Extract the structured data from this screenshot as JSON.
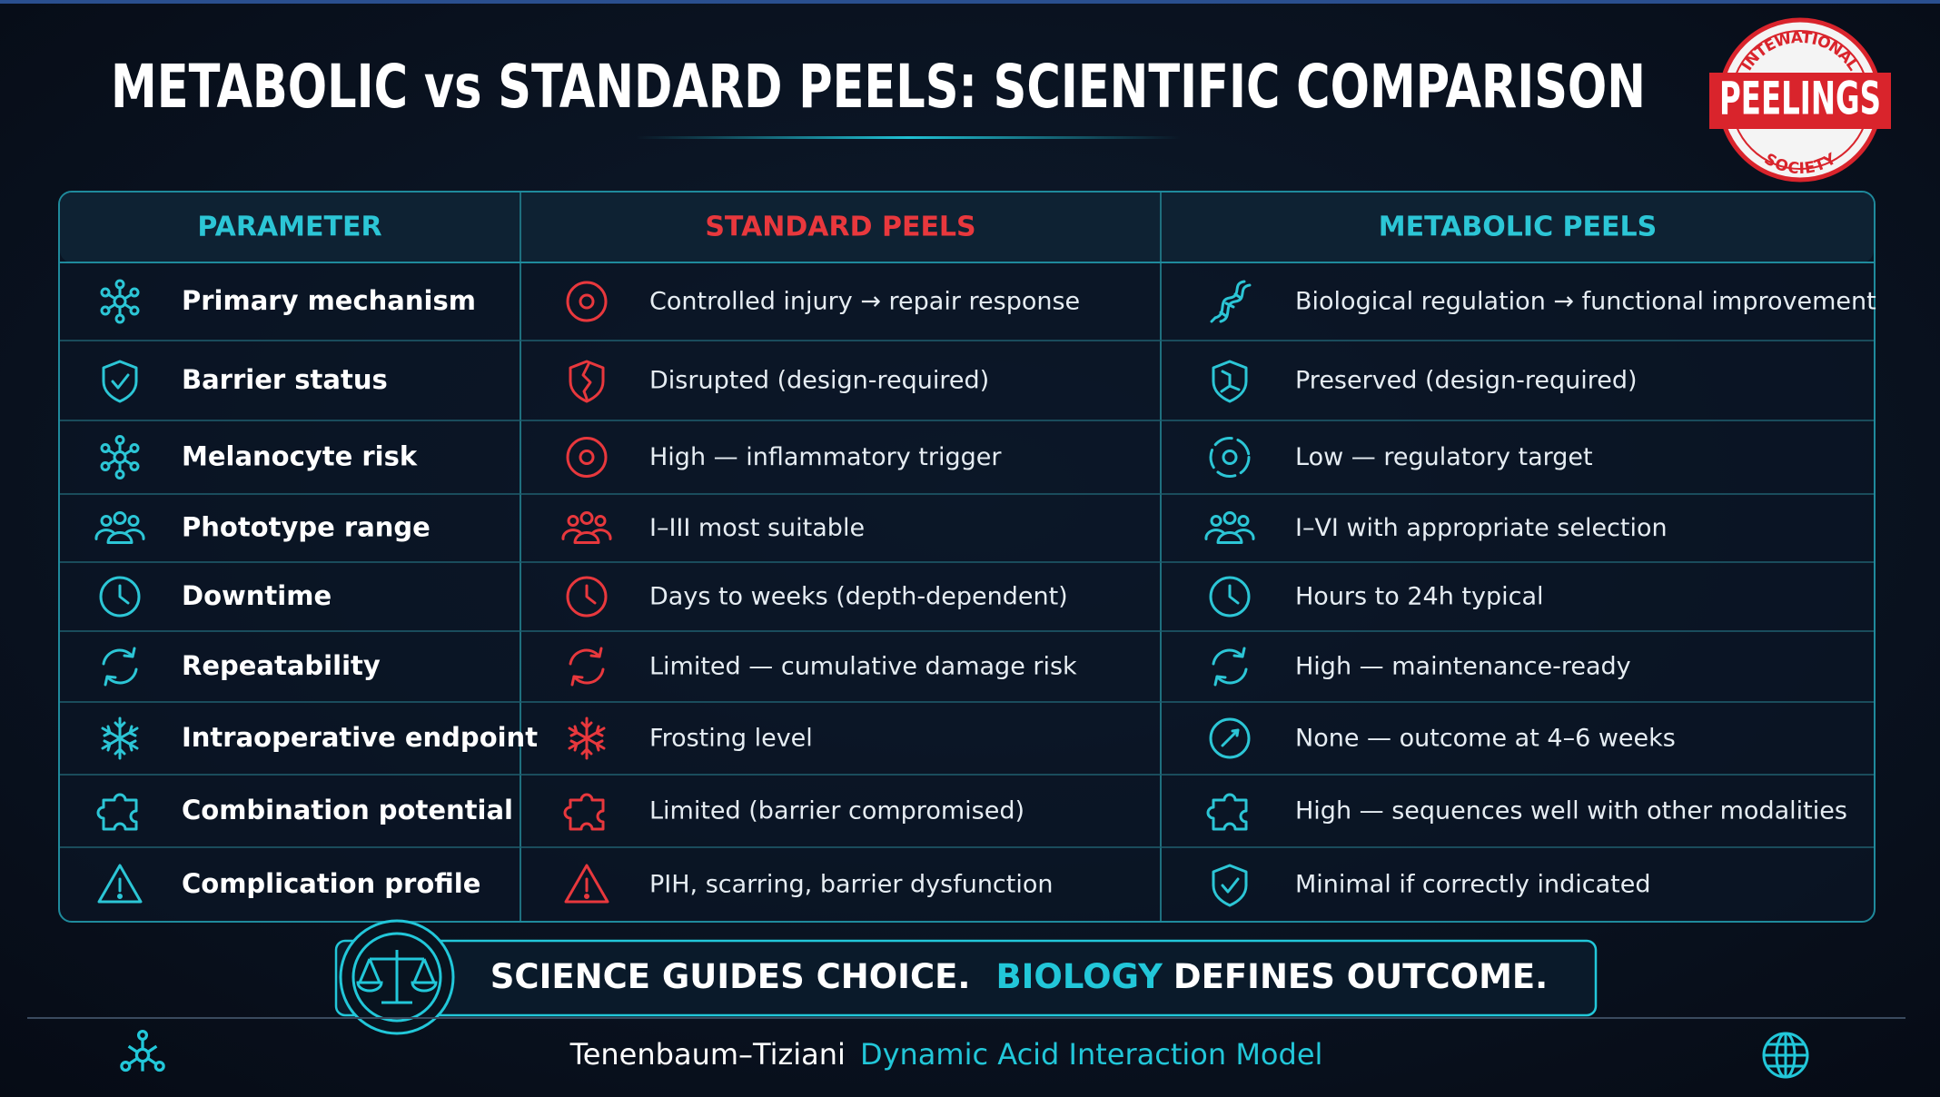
{
  "header": {
    "title": "METABOLIC vs STANDARD PEELS: SCIENTIFIC COMPARISON",
    "logo": {
      "top": "INTEWATIONAL",
      "name": "PEELINGS",
      "bottom": "SOCIETY"
    }
  },
  "table": {
    "columns": [
      "PARAMETER",
      "STANDARD PEELS",
      "METABOLIC PEELS"
    ],
    "rows": [
      [
        "Primary mechanism",
        "Controlled injury → repair response",
        "Biological regulation → functional improvement"
      ],
      [
        "Barrier status",
        "Disrupted (design-required)",
        "Preserved (design-required)"
      ],
      [
        "Melanocyte risk",
        "High — inflammatory trigger",
        "Low — regulatory target"
      ],
      [
        "Phototype range",
        "I–III most suitable",
        "I–VI with appropriate selection"
      ],
      [
        "Downtime",
        "Days to weeks (depth-dependent)",
        "Hours to 24h typical"
      ],
      [
        "Repeatability",
        "Limited — cumulative damage risk",
        "High — maintenance-ready"
      ],
      [
        "Intraoperative endpoint",
        "Frosting level",
        "None — outcome at 4–6 weeks"
      ],
      [
        "Combination potential",
        "Limited (barrier compromised)",
        "High — sequences well with other modalities"
      ],
      [
        "Complication profile",
        "PIH, scarring, barrier dysfunction",
        "Minimal if correctly indicated"
      ]
    ]
  },
  "banner": {
    "parts": [
      "SCIENCE GUIDES CHOICE.",
      "BIOLOGY",
      "DEFINES OUTCOME."
    ]
  },
  "footer": {
    "authors": "Tenenbaum–Tiziani",
    "model": "Dynamic Acid Interaction Model"
  }
}
